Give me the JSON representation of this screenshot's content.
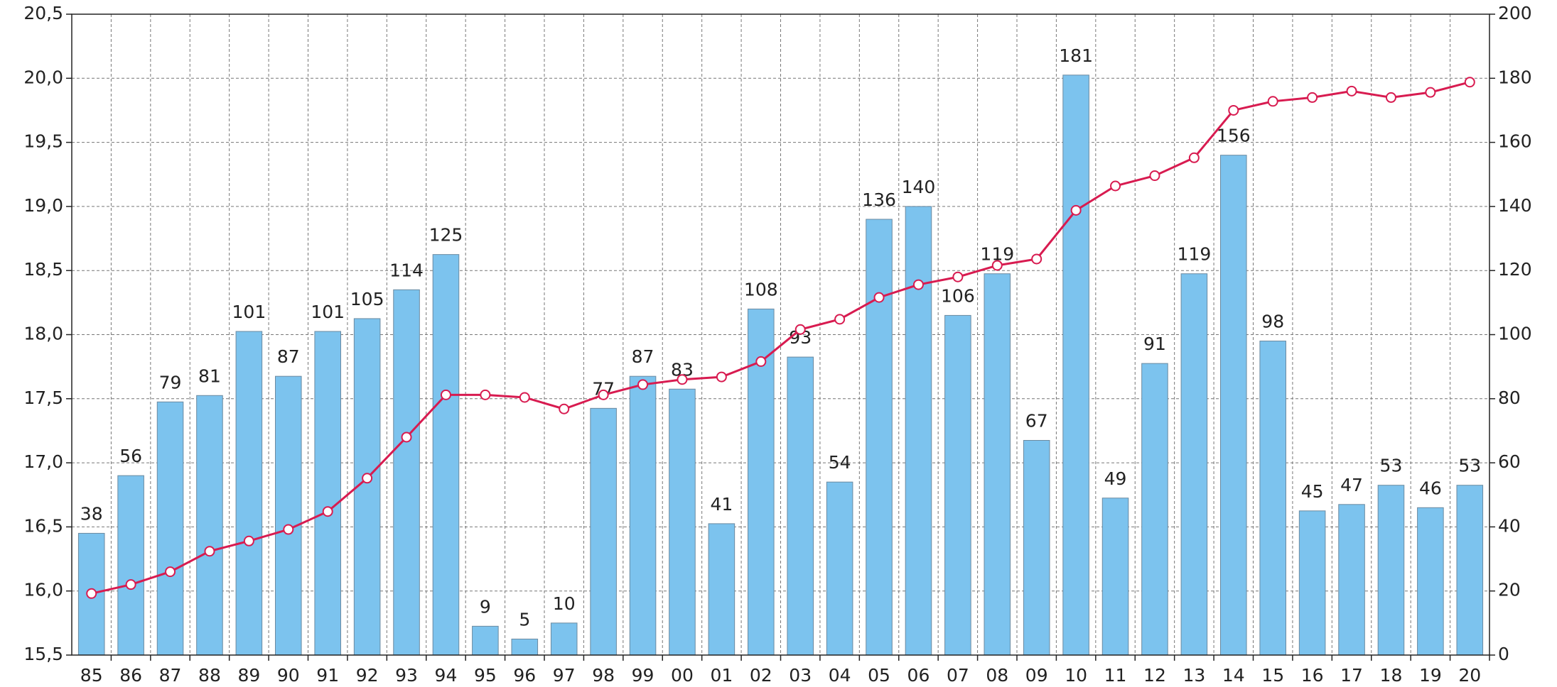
{
  "chart_data": {
    "type": "bar",
    "categories": [
      "85",
      "86",
      "87",
      "88",
      "89",
      "90",
      "91",
      "92",
      "93",
      "94",
      "95",
      "96",
      "97",
      "98",
      "99",
      "00",
      "01",
      "02",
      "03",
      "04",
      "05",
      "06",
      "07",
      "08",
      "09",
      "10",
      "11",
      "12",
      "13",
      "14",
      "15",
      "16",
      "17",
      "18",
      "19",
      "20"
    ],
    "series": [
      {
        "type": "bar",
        "axis": "y2",
        "color": "#7cc3ee",
        "values": [
          38,
          56,
          79,
          81,
          101,
          87,
          101,
          105,
          114,
          125,
          9,
          5,
          10,
          77,
          87,
          83,
          41,
          108,
          93,
          54,
          136,
          140,
          106,
          119,
          67,
          181,
          49,
          91,
          119,
          156,
          98,
          45,
          47,
          53,
          46,
          53
        ]
      },
      {
        "type": "line",
        "axis": "y",
        "color": "#d81b50",
        "values": [
          15.98,
          16.05,
          16.15,
          16.31,
          16.39,
          16.48,
          16.62,
          16.88,
          17.2,
          17.53,
          17.53,
          17.51,
          17.42,
          17.53,
          17.61,
          17.65,
          17.67,
          17.79,
          18.04,
          18.12,
          18.29,
          18.39,
          18.45,
          18.54,
          18.59,
          18.97,
          19.16,
          19.24,
          19.38,
          19.75,
          19.82,
          19.85,
          19.9,
          19.85,
          19.89,
          19.97
        ]
      }
    ],
    "ylim": [
      15.5,
      20.5
    ],
    "yticks": [
      {
        "value": 15.5,
        "label": "15,5"
      },
      {
        "value": 16,
        "label": "16,0"
      },
      {
        "value": 16.5,
        "label": "16,5"
      },
      {
        "value": 17,
        "label": "17,0"
      },
      {
        "value": 17.5,
        "label": "17,5"
      },
      {
        "value": 18,
        "label": "18,0"
      },
      {
        "value": 18.5,
        "label": "18,5"
      },
      {
        "value": 19,
        "label": "19,0"
      },
      {
        "value": 19.5,
        "label": "19,5"
      },
      {
        "value": 20,
        "label": "20,0"
      },
      {
        "value": 20.5,
        "label": "20,5"
      }
    ],
    "y2lim": [
      0,
      200
    ],
    "y2ticks": [
      0,
      20,
      40,
      60,
      80,
      100,
      120,
      140,
      160,
      180,
      200
    ],
    "grid": true
  }
}
